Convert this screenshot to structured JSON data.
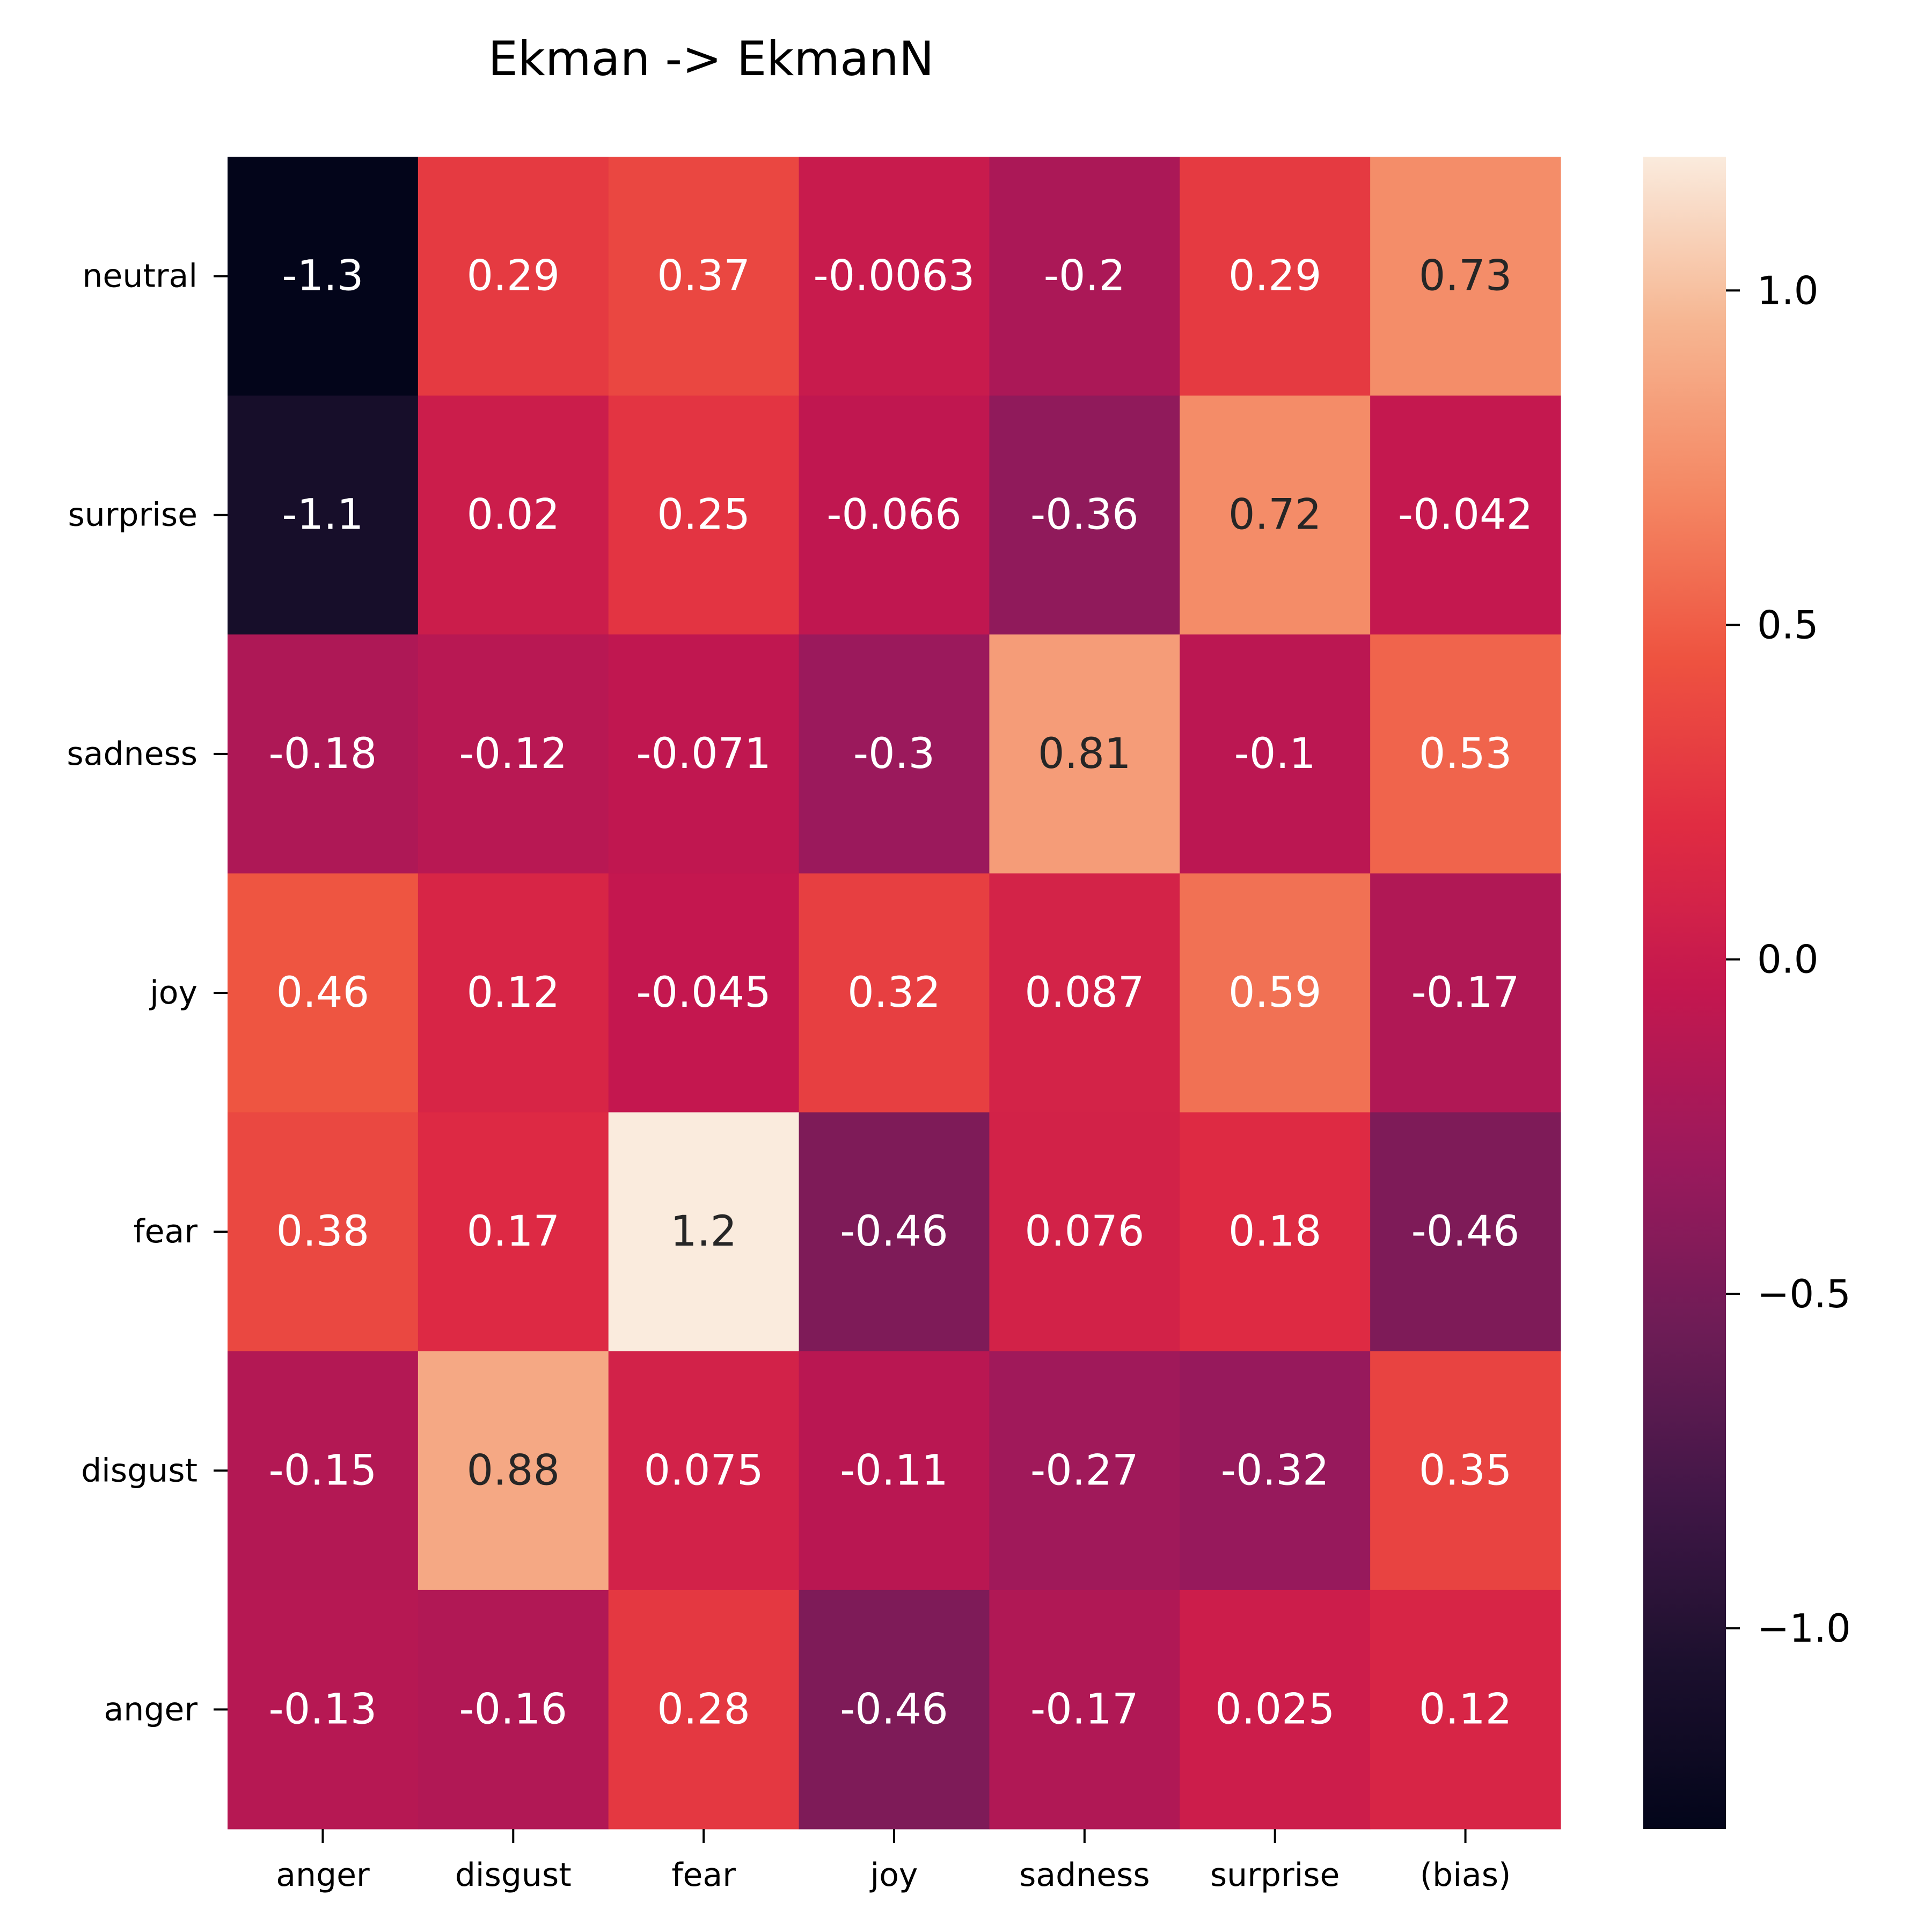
{
  "chart_data": {
    "type": "heatmap",
    "title": "Ekman -> EkmanN",
    "x_labels": [
      "anger",
      "disgust",
      "fear",
      "joy",
      "sadness",
      "surprise",
      "(bias)"
    ],
    "y_labels": [
      "neutral",
      "surprise",
      "sadness",
      "joy",
      "fear",
      "disgust",
      "anger"
    ],
    "values": [
      [
        -1.3,
        0.29,
        0.37,
        -0.0063,
        -0.2,
        0.29,
        0.73
      ],
      [
        -1.1,
        0.02,
        0.25,
        -0.066,
        -0.36,
        0.72,
        -0.042
      ],
      [
        -0.18,
        -0.12,
        -0.071,
        -0.3,
        0.81,
        -0.1,
        0.53
      ],
      [
        0.46,
        0.12,
        -0.045,
        0.32,
        0.087,
        0.59,
        -0.17
      ],
      [
        0.38,
        0.17,
        1.2,
        -0.46,
        0.076,
        0.18,
        -0.46
      ],
      [
        -0.15,
        0.88,
        0.075,
        -0.11,
        -0.27,
        -0.32,
        0.35
      ],
      [
        -0.13,
        -0.16,
        0.28,
        -0.46,
        -0.17,
        0.025,
        0.12
      ]
    ],
    "value_labels": [
      [
        "-1.3",
        "0.29",
        "0.37",
        "-0.0063",
        "-0.2",
        "0.29",
        "0.73"
      ],
      [
        "-1.1",
        "0.02",
        "0.25",
        "-0.066",
        "-0.36",
        "0.72",
        "-0.042"
      ],
      [
        "-0.18",
        "-0.12",
        "-0.071",
        "-0.3",
        "0.81",
        "-0.1",
        "0.53"
      ],
      [
        "0.46",
        "0.12",
        "-0.045",
        "0.32",
        "0.087",
        "0.59",
        "-0.17"
      ],
      [
        "0.38",
        "0.17",
        "1.2",
        "-0.46",
        "0.076",
        "0.18",
        "-0.46"
      ],
      [
        "-0.15",
        "0.88",
        "0.075",
        "-0.11",
        "-0.27",
        "-0.32",
        "0.35"
      ],
      [
        "-0.13",
        "-0.16",
        "0.28",
        "-0.46",
        "-0.17",
        "0.025",
        "0.12"
      ]
    ],
    "colormap": "rocket",
    "color_range": [
      -1.3,
      1.2
    ],
    "colorbar": {
      "ticks": [
        1.0,
        0.5,
        0.0,
        -0.5,
        -1.0
      ],
      "tick_labels": [
        "1.0",
        "0.5",
        "0.0",
        "−0.5",
        "−1.0"
      ]
    },
    "grid": false
  }
}
